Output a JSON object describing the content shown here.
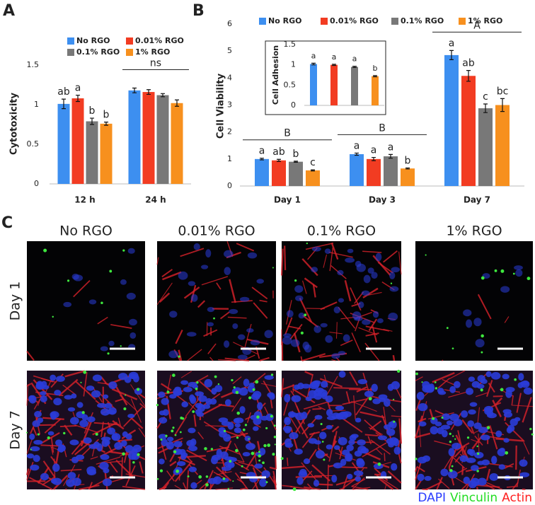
{
  "panels": [
    "A",
    "B",
    "C"
  ],
  "chart_data": [
    {
      "type": "bar",
      "ylabel": "Cytotoxicity",
      "categories": [
        "12 h",
        "24 h"
      ],
      "ylim": [
        0,
        1.5
      ],
      "yticks": [
        0,
        0.5,
        1,
        1.5
      ],
      "group_labels": [
        null,
        "ns"
      ],
      "series": [
        {
          "name": "No RGO",
          "color": "#3d8ff0",
          "values": [
            1.01,
            1.18
          ],
          "errors": [
            0.06,
            0.03
          ],
          "letters": [
            "ab",
            null
          ]
        },
        {
          "name": "0.01% RGO",
          "color": "#f23c22",
          "values": [
            1.08,
            1.16
          ],
          "errors": [
            0.04,
            0.03
          ],
          "letters": [
            "a",
            null
          ]
        },
        {
          "name": "0.1% RGO",
          "color": "#787878",
          "values": [
            0.79,
            1.12
          ],
          "errors": [
            0.04,
            0.02
          ],
          "letters": [
            "b",
            null
          ]
        },
        {
          "name": "1% RGO",
          "color": "#f7901e",
          "values": [
            0.76,
            1.02
          ],
          "errors": [
            0.02,
            0.04
          ],
          "letters": [
            "b",
            null
          ]
        }
      ]
    },
    {
      "type": "bar",
      "ylabel": "Cell Viability",
      "categories": [
        "Day 1",
        "Day 3",
        "Day 7"
      ],
      "ylim": [
        0,
        6
      ],
      "yticks": [
        0,
        1,
        2,
        3,
        4,
        5,
        6
      ],
      "group_labels": [
        "B",
        "B",
        "A"
      ],
      "series": [
        {
          "name": "No RGO",
          "color": "#3d8ff0",
          "values": [
            1.0,
            1.18,
            4.85
          ],
          "errors": [
            0.03,
            0.04,
            0.17
          ],
          "letters": [
            "a",
            "a",
            "a"
          ]
        },
        {
          "name": "0.01% RGO",
          "color": "#f23c22",
          "values": [
            0.95,
            1.0,
            4.08
          ],
          "errors": [
            0.04,
            0.06,
            0.2
          ],
          "letters": [
            "ab",
            "a",
            "ab"
          ]
        },
        {
          "name": "0.1% RGO",
          "color": "#787878",
          "values": [
            0.9,
            1.1,
            2.88
          ],
          "errors": [
            0.02,
            0.07,
            0.16
          ],
          "letters": [
            "b",
            "a",
            "c"
          ]
        },
        {
          "name": "1% RGO",
          "color": "#f7901e",
          "values": [
            0.58,
            0.65,
            3.0
          ],
          "errors": [
            0.02,
            0.02,
            0.24
          ],
          "letters": [
            "c",
            "b",
            "bc"
          ]
        }
      ]
    },
    {
      "type": "bar",
      "ylabel": "Cell Adhesion",
      "categories": [
        null
      ],
      "ylim": [
        0,
        1.5
      ],
      "yticks": [
        0,
        0.5,
        1,
        1.5
      ],
      "series": [
        {
          "color": "#3d8ff0",
          "values": [
            1.02
          ],
          "errors": [
            0.02
          ],
          "letters": [
            "a"
          ]
        },
        {
          "color": "#f23c22",
          "values": [
            1.0
          ],
          "errors": [
            0.015
          ],
          "letters": [
            "a"
          ]
        },
        {
          "color": "#787878",
          "values": [
            0.95
          ],
          "errors": [
            0.015
          ],
          "letters": [
            "a"
          ]
        },
        {
          "color": "#f7901e",
          "values": [
            0.72
          ],
          "errors": [
            0.015
          ],
          "letters": [
            "b"
          ]
        }
      ]
    }
  ],
  "images": {
    "columns": [
      "No RGO",
      "0.01% RGO",
      "0.1% RGO",
      "1% RGO"
    ],
    "rows": [
      "Day 1",
      "Day 7"
    ],
    "stains": [
      {
        "name": "DAPI",
        "color": "#2a3cff"
      },
      {
        "name": "Vinculin",
        "color": "#22dd22"
      },
      {
        "name": "Actin",
        "color": "#ff2020"
      }
    ]
  }
}
